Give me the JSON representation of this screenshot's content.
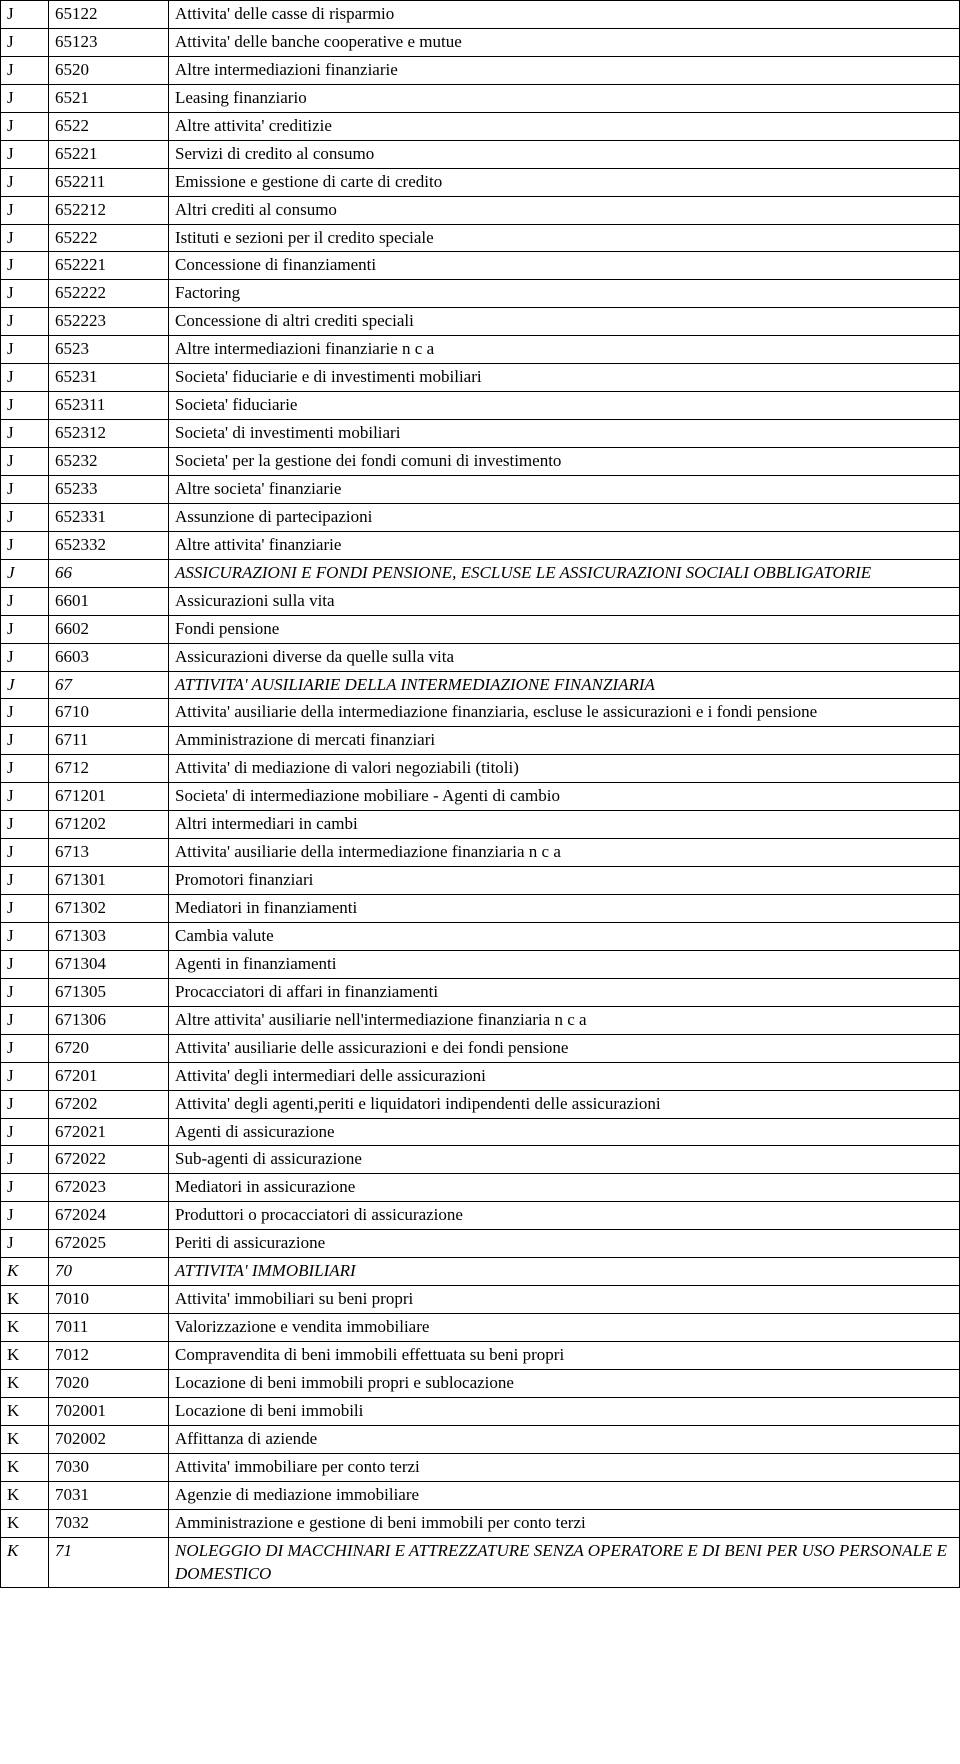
{
  "columns": [
    "cat",
    "code",
    "desc"
  ],
  "rows": [
    {
      "cat": "J",
      "code": "65122",
      "desc": "Attivita' delle casse di risparmio",
      "italic": false
    },
    {
      "cat": "J",
      "code": "65123",
      "desc": "Attivita' delle banche cooperative e mutue",
      "italic": false
    },
    {
      "cat": "J",
      "code": "6520",
      "desc": "Altre intermediazioni finanziarie",
      "italic": false
    },
    {
      "cat": "J",
      "code": "6521",
      "desc": "Leasing finanziario",
      "italic": false
    },
    {
      "cat": "J",
      "code": "6522",
      "desc": "Altre attivita' creditizie",
      "italic": false
    },
    {
      "cat": "J",
      "code": "65221",
      "desc": "Servizi di credito al consumo",
      "italic": false
    },
    {
      "cat": "J",
      "code": "652211",
      "desc": "Emissione e gestione di carte di credito",
      "italic": false
    },
    {
      "cat": "J",
      "code": "652212",
      "desc": "Altri crediti al consumo",
      "italic": false
    },
    {
      "cat": "J",
      "code": "65222",
      "desc": "Istituti e sezioni per il credito speciale",
      "italic": false
    },
    {
      "cat": "J",
      "code": "652221",
      "desc": "Concessione di finanziamenti",
      "italic": false
    },
    {
      "cat": "J",
      "code": "652222",
      "desc": "Factoring",
      "italic": false
    },
    {
      "cat": "J",
      "code": "652223",
      "desc": "Concessione di altri crediti speciali",
      "italic": false
    },
    {
      "cat": "J",
      "code": "6523",
      "desc": "Altre intermediazioni finanziarie n c a",
      "italic": false
    },
    {
      "cat": "J",
      "code": "65231",
      "desc": "Societa' fiduciarie e di investimenti mobiliari",
      "italic": false
    },
    {
      "cat": "J",
      "code": "652311",
      "desc": "Societa' fiduciarie",
      "italic": false
    },
    {
      "cat": "J",
      "code": "652312",
      "desc": "Societa' di investimenti mobiliari",
      "italic": false
    },
    {
      "cat": "J",
      "code": "65232",
      "desc": "Societa' per la gestione dei fondi comuni di investimento",
      "italic": false
    },
    {
      "cat": "J",
      "code": "65233",
      "desc": "Altre societa' finanziarie",
      "italic": false
    },
    {
      "cat": "J",
      "code": "652331",
      "desc": "Assunzione di partecipazioni",
      "italic": false
    },
    {
      "cat": "J",
      "code": "652332",
      "desc": "Altre attivita' finanziarie",
      "italic": false
    },
    {
      "cat": "J",
      "code": "66",
      "desc": "ASSICURAZIONI E FONDI PENSIONE, ESCLUSE LE ASSICURAZIONI SOCIALI OBBLIGATORIE",
      "italic": true
    },
    {
      "cat": "J",
      "code": "6601",
      "desc": "Assicurazioni sulla vita",
      "italic": false
    },
    {
      "cat": "J",
      "code": "6602",
      "desc": "Fondi pensione",
      "italic": false
    },
    {
      "cat": "J",
      "code": "6603",
      "desc": "Assicurazioni diverse da quelle sulla vita",
      "italic": false
    },
    {
      "cat": "J",
      "code": "67",
      "desc": "ATTIVITA' AUSILIARIE DELLA INTERMEDIAZIONE FINANZIARIA",
      "italic": true
    },
    {
      "cat": "J",
      "code": "6710",
      "desc": "Attivita' ausiliarie  della intermediazione finanziaria, escluse le assicurazioni e i fondi pensione",
      "italic": false
    },
    {
      "cat": "J",
      "code": "6711",
      "desc": "Amministrazione di mercati finanziari",
      "italic": false
    },
    {
      "cat": "J",
      "code": "6712",
      "desc": "Attivita' di mediazione di valori negoziabili (titoli)",
      "italic": false
    },
    {
      "cat": "J",
      "code": "671201",
      "desc": "Societa' di intermediazione mobiliare - Agenti di cambio",
      "italic": false
    },
    {
      "cat": "J",
      "code": "671202",
      "desc": "Altri intermediari in cambi",
      "italic": false
    },
    {
      "cat": "J",
      "code": "6713",
      "desc": "Attivita' ausiliarie della intermediazione finanziaria n c a",
      "italic": false
    },
    {
      "cat": "J",
      "code": "671301",
      "desc": "Promotori finanziari",
      "italic": false
    },
    {
      "cat": "J",
      "code": "671302",
      "desc": "Mediatori in finanziamenti",
      "italic": false
    },
    {
      "cat": "J",
      "code": "671303",
      "desc": "Cambia valute",
      "italic": false
    },
    {
      "cat": "J",
      "code": "671304",
      "desc": "Agenti in finanziamenti",
      "italic": false
    },
    {
      "cat": "J",
      "code": "671305",
      "desc": "Procacciatori di affari in finanziamenti",
      "italic": false
    },
    {
      "cat": "J",
      "code": "671306",
      "desc": "Altre attivita' ausiliarie nell'intermediazione finanziaria n c a",
      "italic": false
    },
    {
      "cat": "J",
      "code": "6720",
      "desc": "Attivita' ausiliarie delle assicurazioni e dei fondi pensione",
      "italic": false
    },
    {
      "cat": "J",
      "code": "67201",
      "desc": "Attivita' degli intermediari delle assicurazioni",
      "italic": false
    },
    {
      "cat": "J",
      "code": "67202",
      "desc": "Attivita' degli agenti,periti e liquidatori indipendenti delle assicurazioni",
      "italic": false
    },
    {
      "cat": "J",
      "code": "672021",
      "desc": "Agenti di assicurazione",
      "italic": false
    },
    {
      "cat": "J",
      "code": "672022",
      "desc": "Sub-agenti di assicurazione",
      "italic": false
    },
    {
      "cat": "J",
      "code": "672023",
      "desc": "Mediatori in assicurazione",
      "italic": false
    },
    {
      "cat": "J",
      "code": "672024",
      "desc": "Produttori o procacciatori di assicurazione",
      "italic": false
    },
    {
      "cat": "J",
      "code": "672025",
      "desc": "Periti di assicurazione",
      "italic": false
    },
    {
      "cat": "K",
      "code": "70",
      "desc": "ATTIVITA' IMMOBILIARI",
      "italic": true
    },
    {
      "cat": "K",
      "code": "7010",
      "desc": "Attivita' immobiliari su beni propri",
      "italic": false
    },
    {
      "cat": "K",
      "code": "7011",
      "desc": "Valorizzazione e vendita immobiliare",
      "italic": false
    },
    {
      "cat": "K",
      "code": "7012",
      "desc": "Compravendita di beni immobili effettuata su beni propri",
      "italic": false
    },
    {
      "cat": "K",
      "code": "7020",
      "desc": "Locazione di beni immobili propri e sublocazione",
      "italic": false
    },
    {
      "cat": "K",
      "code": "702001",
      "desc": "Locazione di beni immobili",
      "italic": false
    },
    {
      "cat": "K",
      "code": "702002",
      "desc": "Affittanza di aziende",
      "italic": false
    },
    {
      "cat": "K",
      "code": "7030",
      "desc": "Attivita' immobiliare per conto terzi",
      "italic": false
    },
    {
      "cat": "K",
      "code": "7031",
      "desc": "Agenzie di mediazione immobiliare",
      "italic": false
    },
    {
      "cat": "K",
      "code": "7032",
      "desc": "Amministrazione e gestione di beni immobili per conto terzi",
      "italic": false
    },
    {
      "cat": "K",
      "code": "71",
      "desc": "NOLEGGIO DI MACCHINARI E ATTREZZATURE SENZA OPERATORE E DI BENI PER USO PERSONALE E DOMESTICO",
      "italic": true
    }
  ]
}
